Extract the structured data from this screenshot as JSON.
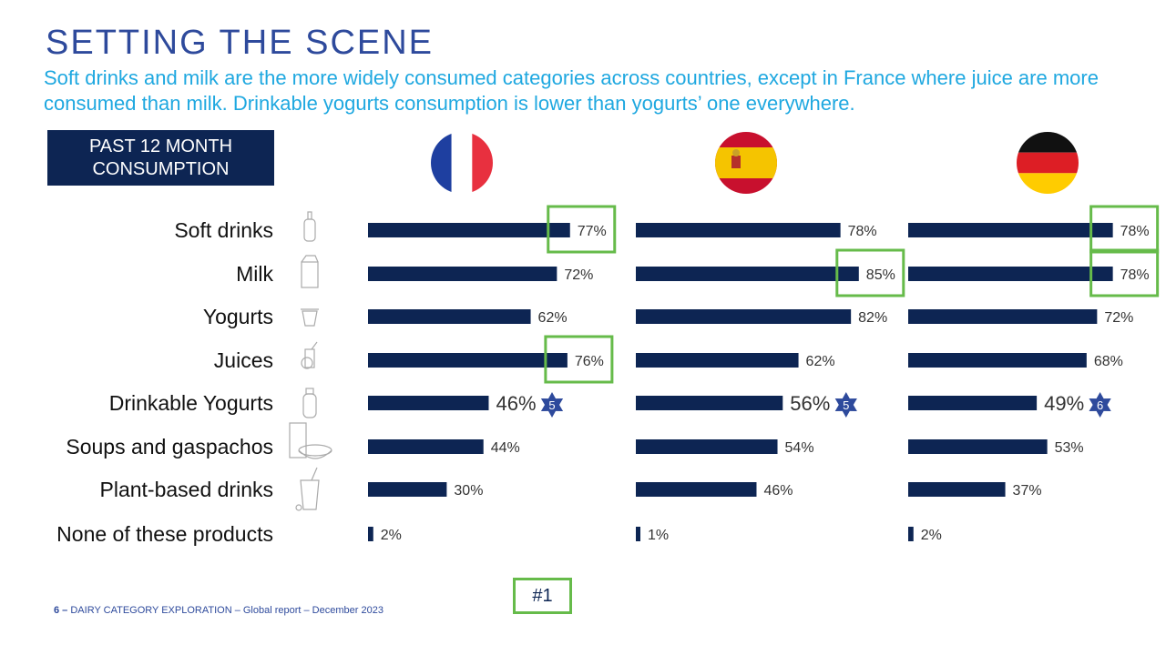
{
  "header": {
    "title": "SETTING THE SCENE",
    "subtitle": "Soft drinks and milk are the more widely consumed categories across countries, except in France where juice are more consumed than milk. Drinkable yogurts consumption is lower than yogurts’ one everywhere."
  },
  "badge": {
    "line1": "PAST 12 MONTH",
    "line2": "CONSUMPTION"
  },
  "footer": {
    "page_num": "6 –",
    "text": "DAIRY CATEGORY EXPLORATION – Global report – December 2023"
  },
  "rank_label": "#1",
  "colors": {
    "bar": "#0d2553",
    "highlight": "#66bb4a",
    "star": "#2e4a9c",
    "title": "#2e4a9c",
    "subtitle": "#1fa8e0"
  },
  "chart_data": {
    "type": "bar",
    "orientation": "horizontal",
    "categories": [
      "Soft drinks",
      "Milk",
      "Yogurts",
      "Juices",
      "Drinkable Yogurts",
      "Soups and gaspachos",
      "Plant-based drinks",
      "None of these products"
    ],
    "category_icons": [
      "bottle-icon",
      "milk-carton-icon",
      "yogurt-cup-icon",
      "juice-glass-icon",
      "drinkable-yogurt-bottle-icon",
      "soup-icon",
      "plant-drink-icon",
      ""
    ],
    "series": [
      {
        "country": "France",
        "flag": "france-flag-icon",
        "values": [
          77,
          72,
          62,
          76,
          46,
          44,
          30,
          2
        ],
        "labels": [
          "77%",
          "72%",
          "62%",
          "76%",
          "46%",
          "44%",
          "30%",
          "2%"
        ],
        "highlighted": [
          true,
          false,
          false,
          true,
          false,
          false,
          false,
          false
        ],
        "ranks": [
          "",
          "",
          "",
          "",
          "5",
          "",
          "",
          ""
        ]
      },
      {
        "country": "Spain",
        "flag": "spain-flag-icon",
        "values": [
          78,
          85,
          82,
          62,
          56,
          54,
          46,
          1
        ],
        "labels": [
          "78%",
          "85%",
          "82%",
          "62%",
          "56%",
          "54%",
          "46%",
          "1%"
        ],
        "highlighted": [
          false,
          true,
          false,
          false,
          false,
          false,
          false,
          false
        ],
        "ranks": [
          "",
          "",
          "",
          "",
          "5",
          "",
          "",
          ""
        ]
      },
      {
        "country": "Germany",
        "flag": "germany-flag-icon",
        "values": [
          78,
          78,
          72,
          68,
          49,
          53,
          37,
          2
        ],
        "labels": [
          "78%",
          "78%",
          "72%",
          "68%",
          "49%",
          "53%",
          "37%",
          "2%"
        ],
        "highlighted": [
          true,
          true,
          false,
          false,
          false,
          false,
          false,
          false
        ],
        "ranks": [
          "",
          "",
          "",
          "",
          "6",
          "",
          "",
          ""
        ]
      }
    ],
    "xlim": [
      0,
      100
    ]
  }
}
